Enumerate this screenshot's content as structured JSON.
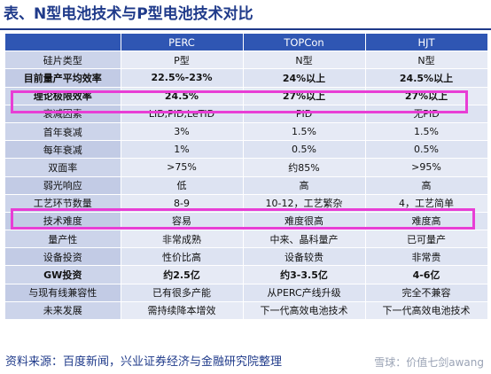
{
  "title": "表、N型电池技术与P型电池技术对比",
  "table": {
    "header": [
      "",
      "PERC",
      "TOPCon",
      "HJT"
    ],
    "rows": [
      {
        "label": "硅片类型",
        "values": [
          "P型",
          "N型",
          "N型"
        ],
        "bold": false
      },
      {
        "label": "目前量产平均效率",
        "values": [
          "22.5%-23%",
          "24%以上",
          "24.5%以上"
        ],
        "bold": true
      },
      {
        "label": "理论极限效率",
        "values": [
          "24.5%",
          "27%以上",
          "27%以上"
        ],
        "bold": true
      },
      {
        "label": "衰减因素",
        "values": [
          "LID,PID,LeTID",
          "PID",
          "无PID"
        ],
        "bold": false
      },
      {
        "label": "首年衰减",
        "values": [
          "3%",
          "1.5%",
          "1.5%"
        ],
        "bold": false
      },
      {
        "label": "每年衰减",
        "values": [
          "1%",
          "0.5%",
          "0.5%"
        ],
        "bold": false
      },
      {
        "label": "双面率",
        "values": [
          ">75%",
          "约85%",
          ">95%"
        ],
        "bold": false
      },
      {
        "label": "弱光响应",
        "values": [
          "低",
          "高",
          "高"
        ],
        "bold": false
      },
      {
        "label": "工艺环节数量",
        "values": [
          "8-9",
          "10-12，工艺繁杂",
          "4，工艺简单"
        ],
        "bold": false
      },
      {
        "label": "技术难度",
        "values": [
          "容易",
          "难度很高",
          "难度高"
        ],
        "bold": false
      },
      {
        "label": "量产性",
        "values": [
          "非常成熟",
          "中来、晶科量产",
          "已可量产"
        ],
        "bold": false
      },
      {
        "label": "设备投资",
        "values": [
          "性价比高",
          "设备较贵",
          "非常贵"
        ],
        "bold": false
      },
      {
        "label": "GW投资",
        "values": [
          "约2.5亿",
          "约3-3.5亿",
          "4-6亿"
        ],
        "bold": true
      },
      {
        "label": "与现有线兼容性",
        "values": [
          "已有很多产能",
          "从PERC产线升级",
          "完全不兼容"
        ],
        "bold": false
      },
      {
        "label": "未来发展",
        "values": [
          "需持续降本增效",
          "下一代高效电池技术",
          "下一代高效电池技术"
        ],
        "bold": false
      }
    ]
  },
  "source": "资料来源：百度新闻，兴业证券经济与金融研究院整理",
  "watermark": "雪球：价值七剑awang",
  "colors": {
    "header_bg": "#2f56b3",
    "highlight": "#e83ed5",
    "title": "#1f3a8a"
  }
}
